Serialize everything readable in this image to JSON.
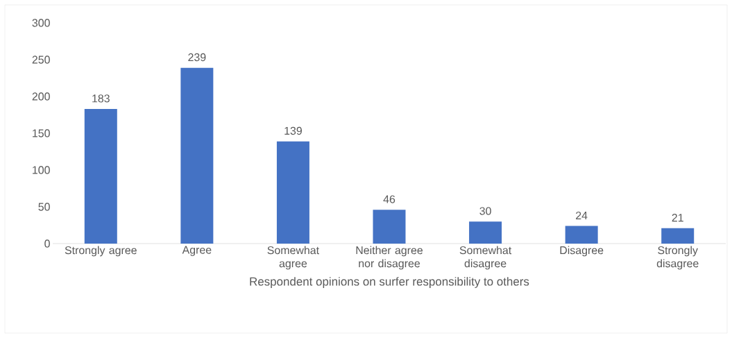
{
  "chart_data": {
    "type": "bar",
    "xlabel": "Respondent opinions on surfer responsibility to others",
    "categories": [
      "Strongly agree",
      "Agree",
      "Somewhat agree",
      "Neither agree nor disagree",
      "Somewhat disagree",
      "Disagree",
      "Strongly disagree"
    ],
    "values": [
      183,
      239,
      139,
      46,
      30,
      24,
      21
    ],
    "color": "#4472c4",
    "ylim": [
      0,
      300
    ],
    "yticks": [
      0,
      50,
      100,
      150,
      200,
      250,
      300
    ],
    "data_labels": true
  }
}
